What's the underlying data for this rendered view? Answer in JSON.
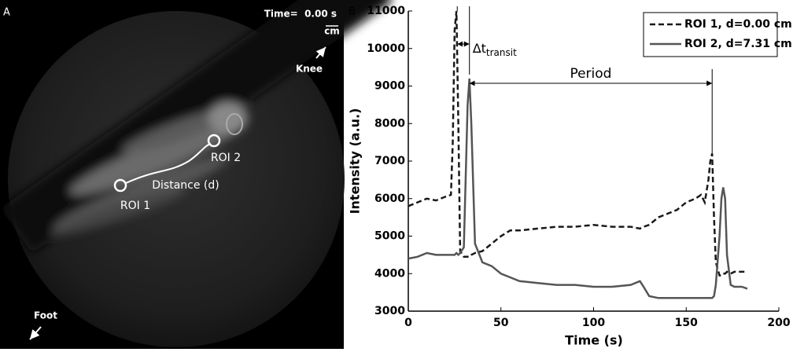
{
  "image_panel": {
    "label": "A",
    "time": "Time=  0.00 s",
    "scale_unit": "cm",
    "knee": "Knee",
    "foot": "Foot",
    "roi_1": "ROI 1",
    "roi_2": "ROI 2",
    "distance": "Distance (d)"
  },
  "chart_data": {
    "type": "line",
    "panel_label": "B",
    "x_label": "Time (s)",
    "y_label": "Intensity (a.u.)",
    "x": [
      0,
      5,
      10,
      15,
      20,
      23,
      24,
      25,
      26,
      27,
      28,
      30,
      32,
      33,
      34,
      36,
      40,
      45,
      50,
      55,
      60,
      70,
      80,
      90,
      100,
      110,
      120,
      125,
      127,
      130,
      135,
      140,
      145,
      150,
      155,
      158,
      160,
      162,
      163,
      164,
      165,
      166,
      168,
      169,
      170,
      171,
      172,
      174,
      176,
      180,
      183
    ],
    "series": [
      {
        "name": "ROI 1, d=0.00 cm",
        "color": "#1a1a1a",
        "dash": true,
        "values": [
          5800,
          5900,
          6000,
          5950,
          6050,
          6100,
          7500,
          10500,
          11000,
          8000,
          4600,
          4450,
          4450,
          4450,
          4500,
          4550,
          4600,
          4800,
          5000,
          5150,
          5150,
          5200,
          5250,
          5250,
          5300,
          5250,
          5250,
          5200,
          5250,
          5300,
          5500,
          5600,
          5700,
          5900,
          6000,
          6100,
          5900,
          6500,
          7000,
          7200,
          5500,
          4300,
          3950,
          3950,
          4000,
          4000,
          4050,
          4000,
          4050,
          4050,
          4050
        ]
      },
      {
        "name": "ROI 2, d=7.31 cm",
        "color": "#555555",
        "dash": false,
        "values": [
          4400,
          4450,
          4550,
          4500,
          4500,
          4500,
          4500,
          4500,
          4550,
          4500,
          4550,
          4700,
          8500,
          9200,
          8000,
          4800,
          4300,
          4200,
          4000,
          3900,
          3800,
          3750,
          3700,
          3700,
          3650,
          3650,
          3700,
          3800,
          3650,
          3400,
          3350,
          3350,
          3350,
          3350,
          3350,
          3350,
          3350,
          3350,
          3350,
          3350,
          3400,
          3700,
          5000,
          6000,
          6300,
          6000,
          4500,
          3700,
          3650,
          3650,
          3600
        ]
      }
    ],
    "xlim": [
      0,
      200
    ],
    "xticks": [
      0,
      50,
      100,
      150,
      200
    ],
    "ylim": [
      3000,
      11000
    ],
    "yticks": [
      3000,
      4000,
      5000,
      6000,
      7000,
      8000,
      9000,
      10000,
      11000
    ],
    "annotations": [
      {
        "text": "Δt",
        "subscript": "transit"
      },
      {
        "text": "Period"
      }
    ],
    "legend": "upper right"
  }
}
